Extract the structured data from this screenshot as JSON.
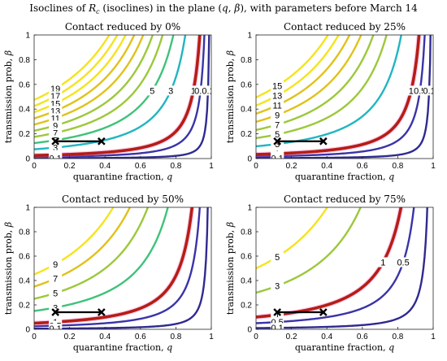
{
  "figure": {
    "title": "Isoclines of R_c (isoclines) in the plane (q, β), with parameters before March 14"
  },
  "colors": {
    "highlight_level": "#b41e14",
    "highlight_glow": "#ff66cc",
    "bar": "#000000",
    "scale": [
      "#3b2ea0",
      "#3f5ed6",
      "#2f8fe0",
      "#20b6c0",
      "#3fc27a",
      "#9cc83a",
      "#e0c21a",
      "#f4e41c"
    ]
  },
  "chart_data": [
    {
      "type": "contour",
      "title": "Contact reduced by 0%",
      "xlabel": "quarantine fraction, q",
      "ylabel": "transmission prob, β",
      "xlim": [
        0,
        1
      ],
      "ylim": [
        0,
        1
      ],
      "xticks": [
        "0",
        "0.2",
        "0.4",
        "0.6",
        "0.8",
        "1"
      ],
      "yticks": [
        "0",
        "0.2",
        "0.4",
        "0.6",
        "0.8",
        "1"
      ],
      "levels": [
        0.1,
        0.5,
        1,
        3,
        5,
        7,
        9,
        11,
        13,
        15,
        17,
        19
      ],
      "labeled_levels": [
        "19",
        "17",
        "15",
        "13",
        "11",
        "9",
        "7",
        "5",
        "3",
        "1",
        "0.5",
        "0.1",
        "5",
        "3",
        "1",
        "0.5",
        "0.1"
      ],
      "beta_at_q0_for_Rc1": 0.025,
      "current_segment": {
        "q": [
          0.12,
          0.38
        ],
        "beta": 0.14
      }
    },
    {
      "type": "contour",
      "title": "Contact reduced by 25%",
      "xlabel": "quarantine fraction, q",
      "ylabel": "transmission prob, β",
      "xlim": [
        0,
        1
      ],
      "ylim": [
        0,
        1
      ],
      "xticks": [
        "0",
        "0.2",
        "0.4",
        "0.6",
        "0.8",
        "1"
      ],
      "yticks": [
        "0",
        "0.2",
        "0.4",
        "0.6",
        "0.8",
        "1"
      ],
      "levels": [
        0.1,
        0.5,
        1,
        3,
        5,
        7,
        9,
        11,
        13,
        15
      ],
      "labeled_levels": [
        "15",
        "13",
        "11",
        "9",
        "7",
        "5",
        "3",
        "1",
        "0.5",
        "0.1",
        "1",
        "0.5",
        "0.1"
      ],
      "beta_at_q0_for_Rc1": 0.033,
      "current_segment": {
        "q": [
          0.12,
          0.38
        ],
        "beta": 0.14
      }
    },
    {
      "type": "contour",
      "title": "Contact reduced by 50%",
      "xlabel": "quarantine fraction, q",
      "ylabel": "transmission prob, β",
      "xlim": [
        0,
        1
      ],
      "ylim": [
        0,
        1
      ],
      "xticks": [
        "0",
        "0.2",
        "0.4",
        "0.6",
        "0.8",
        "1"
      ],
      "yticks": [
        "0",
        "0.2",
        "0.4",
        "0.6",
        "0.8",
        "1"
      ],
      "levels": [
        0.1,
        0.5,
        1,
        3,
        5,
        7,
        9
      ],
      "labeled_levels": [
        "9",
        "7",
        "5",
        "3",
        "1",
        "0.5",
        "0.1"
      ],
      "beta_at_q0_for_Rc1": 0.05,
      "current_segment": {
        "q": [
          0.12,
          0.38
        ],
        "beta": 0.14
      }
    },
    {
      "type": "contour",
      "title": "Contact reduced by 75%",
      "xlabel": "quarantine fraction, q",
      "ylabel": "transmission prob, β",
      "xlim": [
        0,
        1
      ],
      "ylim": [
        0,
        1
      ],
      "xticks": [
        "0",
        "0.2",
        "0.4",
        "0.6",
        "0.8",
        "1"
      ],
      "yticks": [
        "0",
        "0.2",
        "0.4",
        "0.6",
        "0.8",
        "1"
      ],
      "levels": [
        0.1,
        0.5,
        1,
        3,
        5
      ],
      "labeled_levels": [
        "5",
        "3",
        "1",
        "0.5",
        "0.1",
        "1",
        "0.5"
      ],
      "beta_at_q0_for_Rc1": 0.1,
      "current_segment": {
        "q": [
          0.12,
          0.38
        ],
        "beta": 0.14
      }
    }
  ]
}
